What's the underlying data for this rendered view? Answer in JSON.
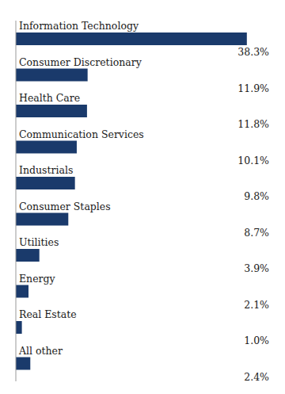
{
  "chart_data": {
    "type": "bar",
    "orientation": "horizontal",
    "categories": [
      "Information Technology",
      "Consumer Discretionary",
      "Health Care",
      "Communication Services",
      "Industrials",
      "Consumer Staples",
      "Utilities",
      "Energy",
      "Real Estate",
      "All other"
    ],
    "values": [
      38.3,
      11.9,
      11.8,
      10.1,
      9.8,
      8.7,
      3.9,
      2.1,
      1.0,
      2.4
    ],
    "value_labels": [
      "38.3%",
      "11.9%",
      "11.8%",
      "10.1%",
      "9.8%",
      "8.7%",
      "3.9%",
      "2.1%",
      "1.0%",
      "2.4%"
    ],
    "data_labels": true,
    "color": "#1a3a6b",
    "xlim": [
      0,
      42
    ],
    "tick_labels": false
  }
}
